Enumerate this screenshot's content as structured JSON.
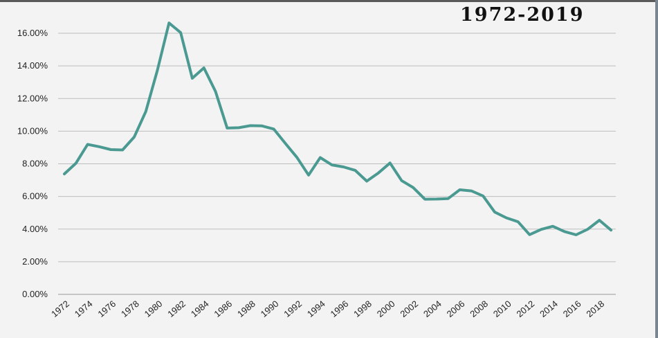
{
  "chart_data": {
    "type": "line",
    "title": "1972-2019",
    "xlabel": "",
    "ylabel": "",
    "ylim": [
      0,
      16
    ],
    "yticks": [
      "0.00%",
      "2.00%",
      "4.00%",
      "6.00%",
      "8.00%",
      "10.00%",
      "12.00%",
      "14.00%",
      "16.00%"
    ],
    "xtick_labels": [
      "1972",
      "1974",
      "1976",
      "1978",
      "1980",
      "1982",
      "1984",
      "1986",
      "1988",
      "1990",
      "1992",
      "1994",
      "1996",
      "1998",
      "2000",
      "2002",
      "2004",
      "2006",
      "2008",
      "2010",
      "2012",
      "2014",
      "2016",
      "2018"
    ],
    "grid": true,
    "colors": {
      "line": "#4a9a92",
      "grid": "#bdbdbd",
      "axis": "#9a9a9a"
    },
    "series": [
      {
        "x": [
          1972,
          1973,
          1974,
          1975,
          1976,
          1977,
          1978,
          1979,
          1980,
          1981,
          1982,
          1983,
          1984,
          1985,
          1986,
          1987,
          1988,
          1989,
          1990,
          1991,
          1992,
          1993,
          1994,
          1995,
          1996,
          1997,
          1998,
          1999,
          2000,
          2001,
          2002,
          2003,
          2004,
          2005,
          2006,
          2007,
          2008,
          2009,
          2010,
          2011,
          2012,
          2013,
          2014,
          2015,
          2016,
          2017,
          2018,
          2019
        ],
        "values": [
          7.38,
          8.04,
          9.19,
          9.05,
          8.87,
          8.85,
          9.64,
          11.2,
          13.74,
          16.63,
          16.04,
          13.24,
          13.88,
          12.43,
          10.19,
          10.21,
          10.34,
          10.32,
          10.13,
          9.25,
          8.39,
          7.31,
          8.38,
          7.93,
          7.81,
          7.6,
          6.94,
          7.44,
          8.05,
          6.97,
          6.54,
          5.83,
          5.84,
          5.87,
          6.41,
          6.34,
          6.03,
          5.04,
          4.69,
          4.45,
          3.66,
          3.98,
          4.17,
          3.85,
          3.65,
          3.99,
          4.54,
          3.94
        ]
      }
    ]
  }
}
